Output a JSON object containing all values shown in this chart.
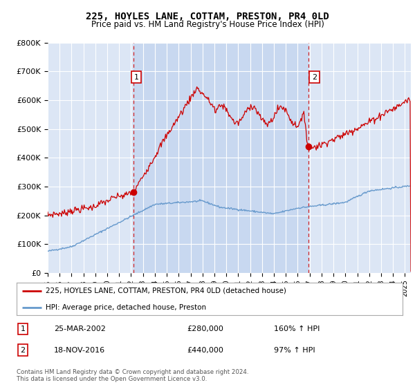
{
  "title": "225, HOYLES LANE, COTTAM, PRESTON, PR4 0LD",
  "subtitle": "Price paid vs. HM Land Registry's House Price Index (HPI)",
  "ylabel_ticks": [
    "£0",
    "£100K",
    "£200K",
    "£300K",
    "£400K",
    "£500K",
    "£600K",
    "£700K",
    "£800K"
  ],
  "ytick_values": [
    0,
    100000,
    200000,
    300000,
    400000,
    500000,
    600000,
    700000,
    800000
  ],
  "ylim": [
    0,
    800000
  ],
  "legend_line1": "225, HOYLES LANE, COTTAM, PRESTON, PR4 0LD (detached house)",
  "legend_line2": "HPI: Average price, detached house, Preston",
  "footnote": "Contains HM Land Registry data © Crown copyright and database right 2024.\nThis data is licensed under the Open Government Licence v3.0.",
  "sale1_label": "1",
  "sale1_date": "25-MAR-2002",
  "sale1_price": "£280,000",
  "sale1_hpi": "160% ↑ HPI",
  "sale1_x": 2002.23,
  "sale1_y": 280000,
  "sale2_label": "2",
  "sale2_date": "18-NOV-2016",
  "sale2_price": "£440,000",
  "sale2_hpi": "97% ↑ HPI",
  "sale2_x": 2016.88,
  "sale2_y": 440000,
  "vline1_x": 2002.23,
  "vline2_x": 2016.88,
  "background_color": "#dce6f5",
  "highlight_color": "#c8d8f0",
  "plot_bg_color": "#dce6f5",
  "red_color": "#cc0000",
  "blue_color": "#6699cc",
  "vline_color": "#cc0000",
  "xmin": 1995.0,
  "xmax": 2025.5
}
